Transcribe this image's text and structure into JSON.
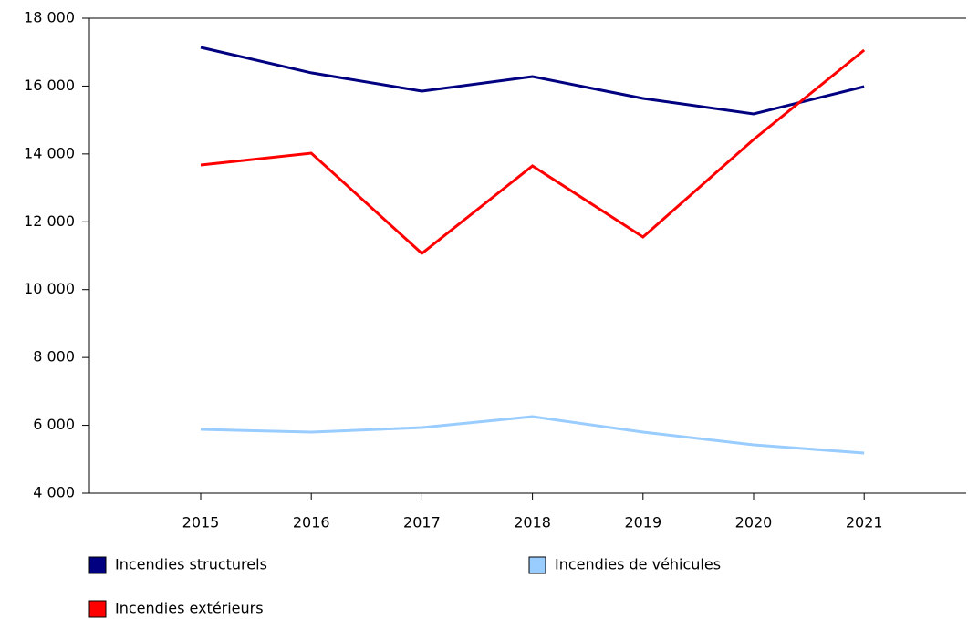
{
  "chart_data": {
    "type": "line",
    "categories": [
      "2015",
      "2016",
      "2017",
      "2018",
      "2019",
      "2020",
      "2021"
    ],
    "series": [
      {
        "name": "Incendies structurels",
        "color": "#000080",
        "values": [
          17140,
          16390,
          15850,
          16280,
          15635,
          15180,
          15985
        ]
      },
      {
        "name": "Incendies de véhicules",
        "color": "#99ccff",
        "values": [
          5881,
          5800,
          5935,
          6257,
          5800,
          5424,
          5182
        ]
      },
      {
        "name": "Incendies extérieurs",
        "color": "#ff0000",
        "values": [
          13674,
          14023,
          11067,
          13647,
          11551,
          14426,
          17060
        ]
      }
    ],
    "ylim": [
      4000,
      18000
    ],
    "yticks": [
      {
        "value": 4000,
        "label": "4 000"
      },
      {
        "value": 6000,
        "label": "6 000"
      },
      {
        "value": 8000,
        "label": "8 000"
      },
      {
        "value": 10000,
        "label": "10 000"
      },
      {
        "value": 12000,
        "label": "12 000"
      },
      {
        "value": 14000,
        "label": "14 000"
      },
      {
        "value": 16000,
        "label": "16 000"
      },
      {
        "value": 18000,
        "label": "18 000"
      }
    ]
  }
}
